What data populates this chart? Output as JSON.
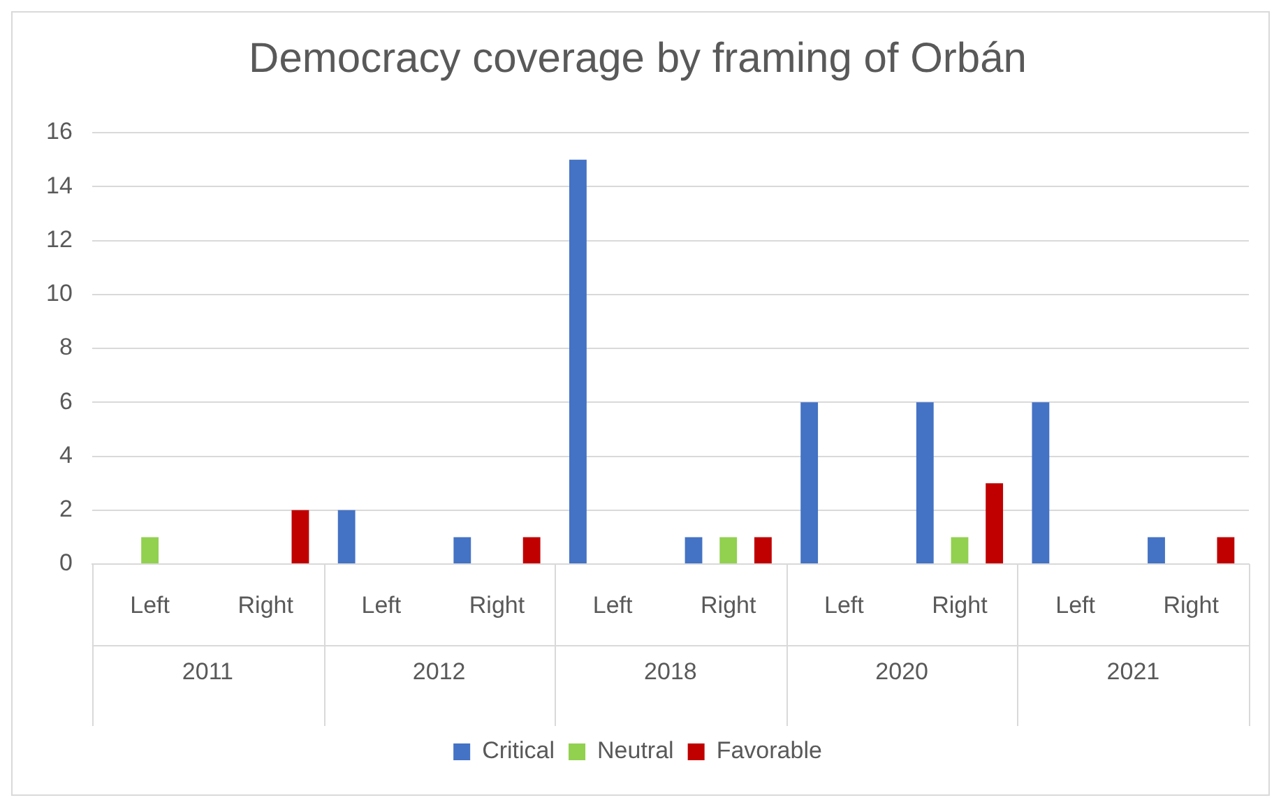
{
  "chart_data": {
    "type": "bar",
    "title": "Democracy coverage by framing of Orbán",
    "categories": [
      "Left",
      "Right",
      "Left",
      "Right",
      "Left",
      "Right",
      "Left",
      "Right",
      "Left",
      "Right"
    ],
    "annotations": [
      "2011",
      "2012",
      "2018",
      "2020",
      "2021"
    ],
    "series": [
      {
        "name": "Critical",
        "color": "#4472c4",
        "values": [
          0,
          0,
          2,
          1,
          15,
          1,
          6,
          6,
          6,
          1
        ]
      },
      {
        "name": "Neutral",
        "color": "#92d050",
        "values": [
          1,
          0,
          0,
          0,
          0,
          1,
          0,
          1,
          0,
          0
        ]
      },
      {
        "name": "Favorable",
        "color": "#c00000",
        "values": [
          0,
          2,
          0,
          1,
          0,
          1,
          0,
          3,
          0,
          1
        ]
      }
    ],
    "ylim": [
      0,
      16
    ],
    "yticks": [
      0,
      2,
      4,
      6,
      8,
      10,
      12,
      14,
      16
    ],
    "grid": "y",
    "legend": "bottom"
  }
}
